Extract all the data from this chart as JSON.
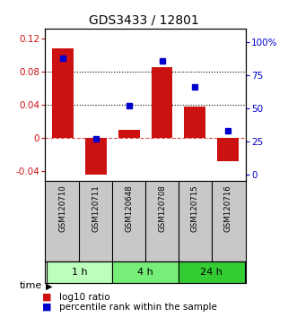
{
  "title": "GDS3433 / 12801",
  "samples": [
    "GSM120710",
    "GSM120711",
    "GSM120648",
    "GSM120708",
    "GSM120715",
    "GSM120716"
  ],
  "log10_ratio": [
    0.108,
    -0.045,
    0.01,
    0.085,
    0.038,
    -0.028
  ],
  "percentile_rank": [
    88,
    27,
    52,
    86,
    66,
    33
  ],
  "time_groups": [
    {
      "label": "1 h",
      "start": 0,
      "end": 2,
      "color": "#bbffbb"
    },
    {
      "label": "4 h",
      "start": 2,
      "end": 4,
      "color": "#77ee77"
    },
    {
      "label": "24 h",
      "start": 4,
      "end": 6,
      "color": "#33cc33"
    }
  ],
  "bar_color": "#cc1111",
  "dot_color": "#0000cc",
  "ylim_left": [
    -0.052,
    0.132
  ],
  "ylim_right": [
    -4.33,
    110
  ],
  "yticks_left": [
    -0.04,
    0,
    0.04,
    0.08,
    0.12
  ],
  "ytick_labels_left": [
    "-0.04",
    "0",
    "0.04",
    "0.08",
    "0.12"
  ],
  "yticks_right": [
    0,
    25,
    50,
    75,
    100
  ],
  "ytick_labels_right": [
    "0",
    "25",
    "50",
    "75",
    "100%"
  ],
  "hlines_y": [
    0.04,
    0.08
  ],
  "zero_line_y": 0,
  "background_color": "#ffffff",
  "plot_bg_color": "#ffffff",
  "sample_box_color": "#c8c8c8",
  "title_fontsize": 10,
  "tick_fontsize": 7.5,
  "sample_fontsize": 6.2,
  "legend_fontsize": 7.5,
  "time_fontsize": 8
}
